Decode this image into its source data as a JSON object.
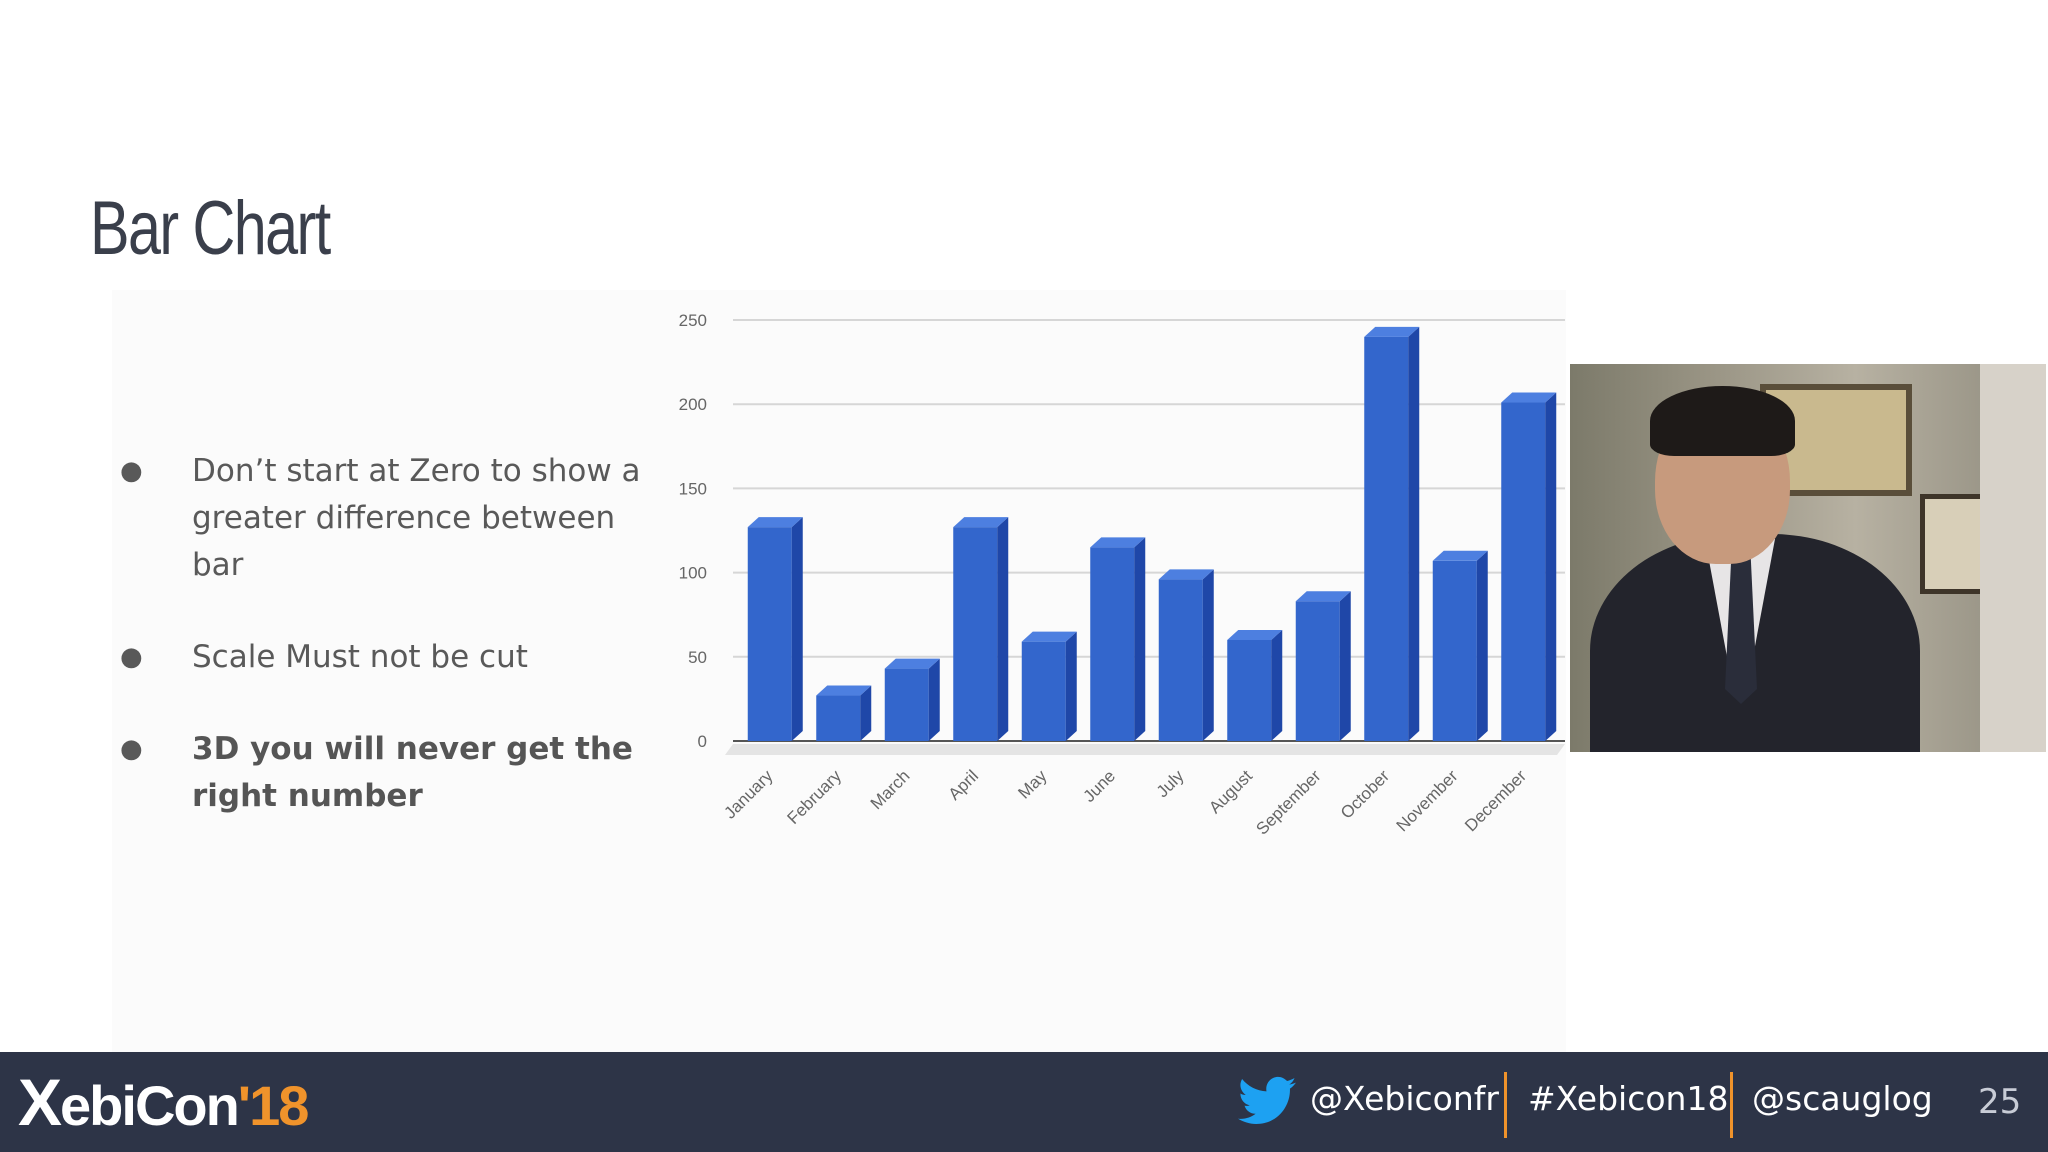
{
  "slide": {
    "title": "Bar Chart",
    "bullets": [
      {
        "text": "Don’t start at Zero to show a greater difference between bar",
        "bold": false
      },
      {
        "text": "Scale Must not be cut",
        "bold": false
      },
      {
        "text": "3D you will never get the right number",
        "bold": true
      }
    ],
    "bullet_glyph": "●"
  },
  "chart_data": {
    "type": "bar",
    "categories": [
      "January",
      "February",
      "March",
      "April",
      "May",
      "June",
      "July",
      "August",
      "September",
      "October",
      "November",
      "December"
    ],
    "values": [
      127,
      27,
      43,
      127,
      59,
      115,
      96,
      60,
      83,
      240,
      107,
      201
    ],
    "title": "",
    "xlabel": "",
    "ylabel": "",
    "ylim": [
      0,
      250
    ],
    "yticks": [
      0,
      50,
      100,
      150,
      200,
      250
    ],
    "bar_color": "#3366cc",
    "bar_side_color": "#1f47a8",
    "bar_top_color": "#4d7fe0",
    "grid": true,
    "three_d": true
  },
  "image": {
    "icon": "presenter-photo"
  },
  "footer": {
    "logo_x": "X",
    "logo_text": "ebiCon",
    "logo_year": "'18",
    "twitter_icon": "twitter-bird-icon",
    "handle1": "@Xebiconfr",
    "handle2": "#Xebicon18",
    "handle3": "@scauglog",
    "page_number": "25",
    "accent": "#f0932b",
    "twitter_color": "#1da1f2"
  }
}
